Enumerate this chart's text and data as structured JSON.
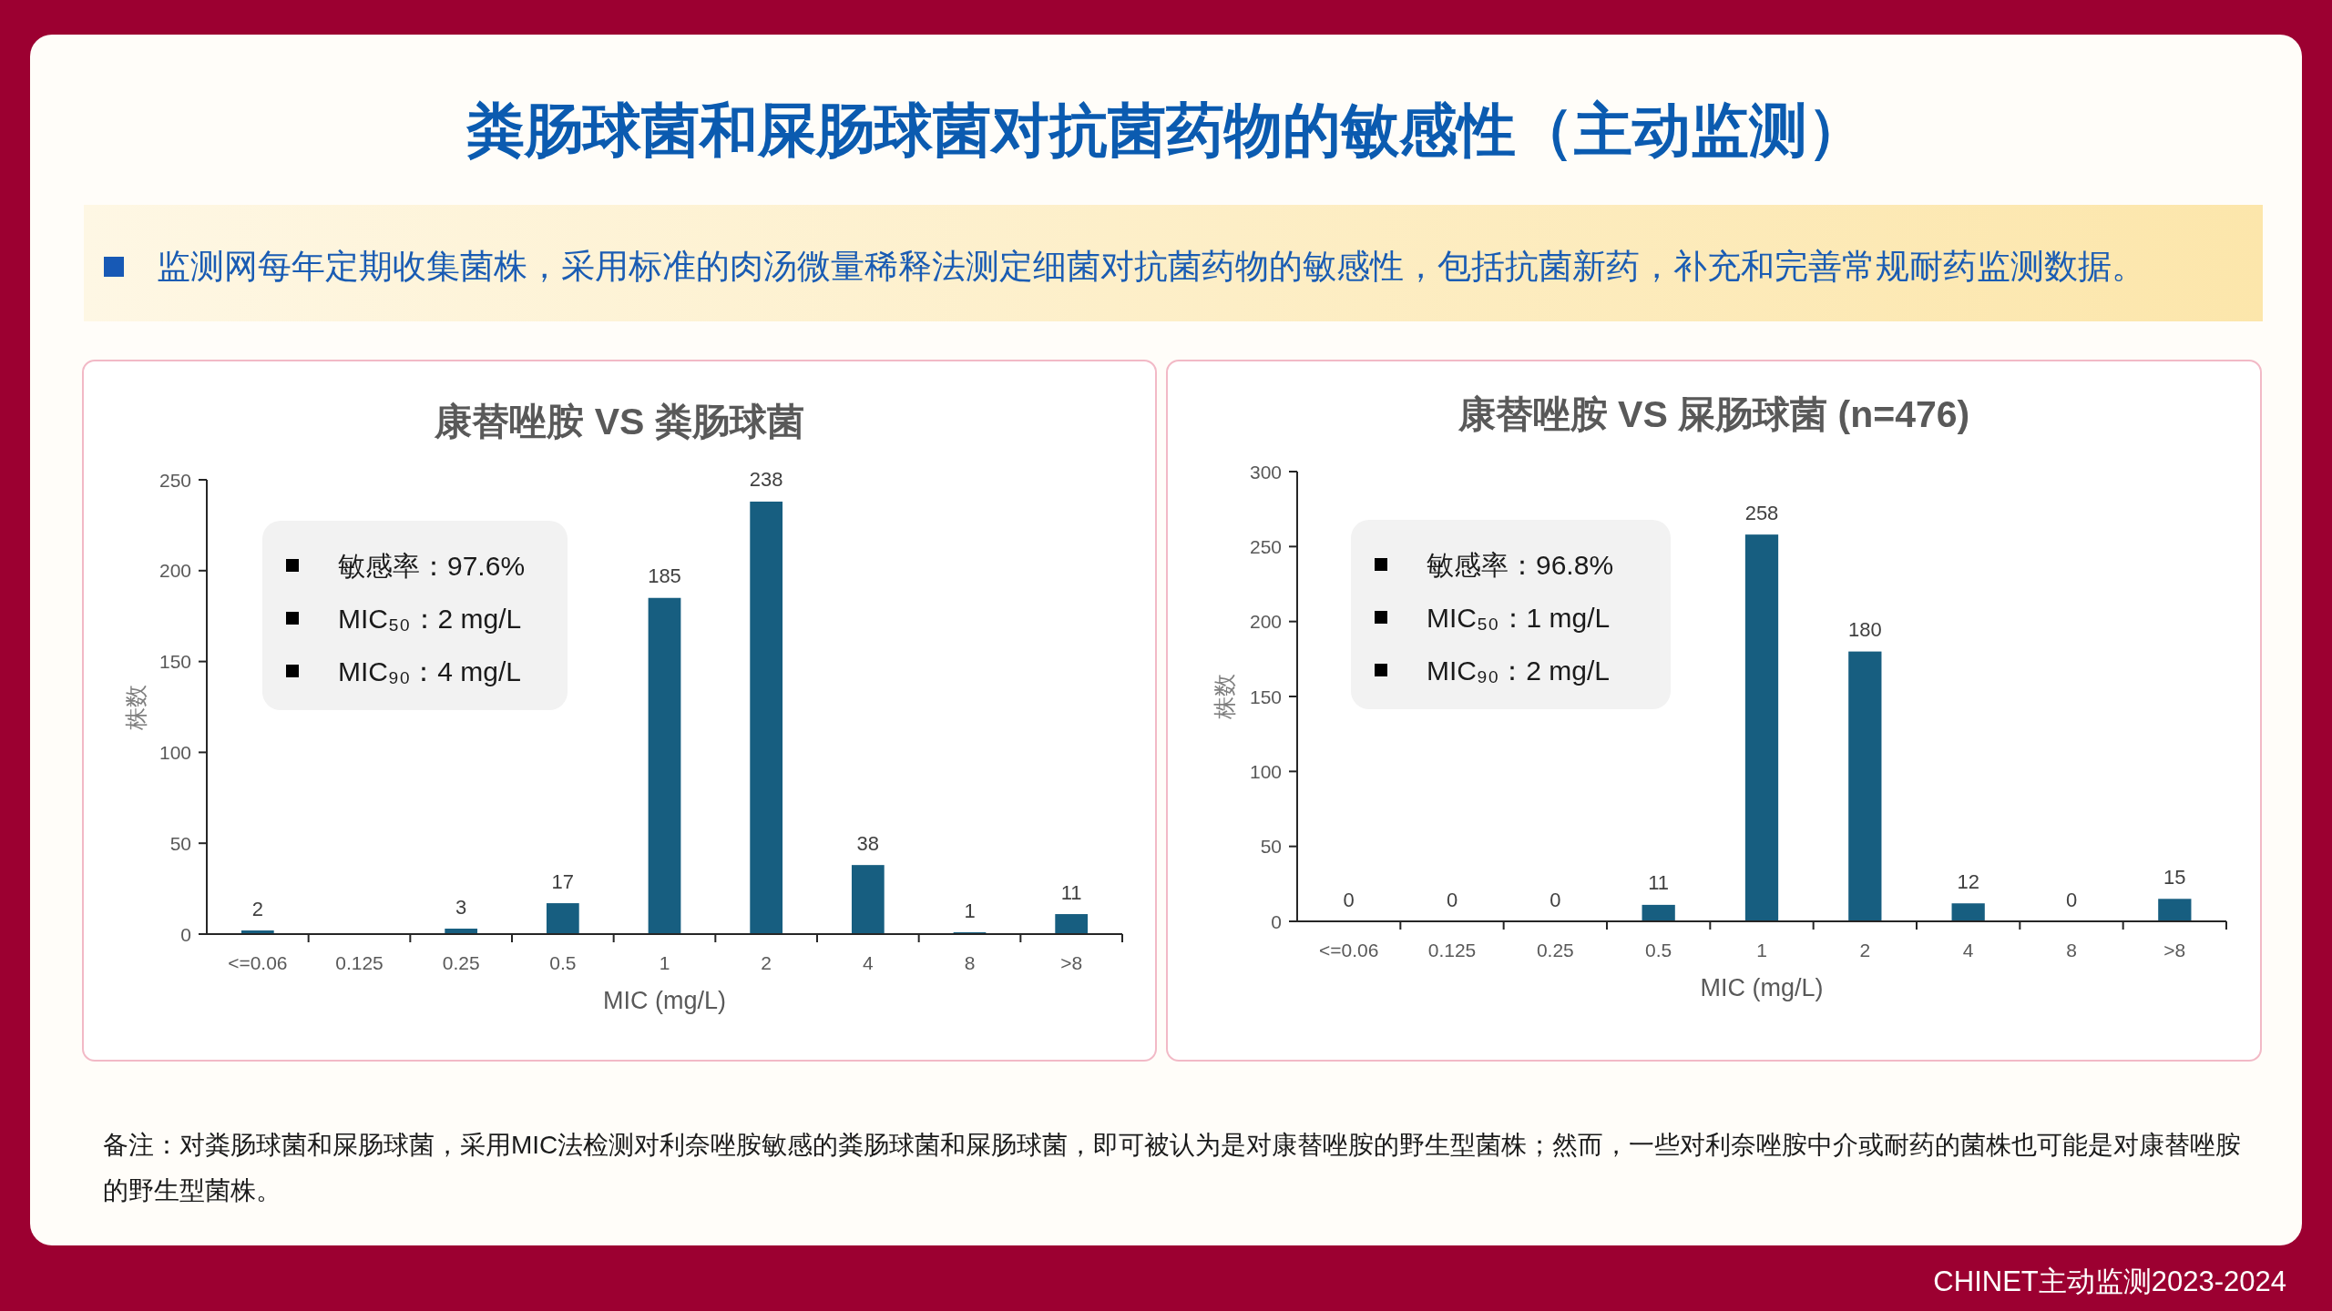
{
  "chart_data": [
    {
      "type": "other",
      "title": "粪肠球菌和屎肠球菌对抗菌药物的敏感性（主动监测）",
      "subtitle": "监测网每年定期收集菌株，采用标准的肉汤微量稀释法测定细菌对抗菌药物的敏感性，包括抗菌新药，补充和完善常规耐药监测数据。"
    },
    {
      "type": "bar",
      "title": "康替唑胺 VS 粪肠球菌",
      "xlabel": "MIC (mg/L)",
      "ylabel": "株数",
      "categories": [
        "<=0.06",
        "0.125",
        "0.25",
        "0.5",
        "1",
        "2",
        "4",
        "8",
        ">8"
      ],
      "values": [
        2,
        0,
        3,
        17,
        185,
        238,
        38,
        1,
        11
      ],
      "value_labels": [
        "2",
        null,
        "3",
        "17",
        "185",
        "238",
        "38",
        "1",
        "11"
      ],
      "color": "#175e80",
      "ylim": [
        0,
        250
      ],
      "yticks": [
        0,
        50,
        100,
        150,
        200,
        250
      ],
      "annotations": [
        "敏感率：97.6%",
        "MIC₅₀：2 mg/L",
        "MIC₉₀：4 mg/L"
      ]
    },
    {
      "type": "bar",
      "title": "康替唑胺 VS 屎肠球菌 (n=476)",
      "xlabel": "MIC (mg/L)",
      "ylabel": "株数",
      "categories": [
        "<=0.06",
        "0.125",
        "0.25",
        "0.5",
        "1",
        "2",
        "4",
        "8",
        ">8"
      ],
      "values": [
        0,
        0,
        0,
        11,
        258,
        180,
        12,
        0,
        15
      ],
      "data_labels": true,
      "color": "#175e80",
      "ylim": [
        0,
        300
      ],
      "yticks": [
        0,
        50,
        100,
        150,
        200,
        250,
        300
      ],
      "annotations": [
        "敏感率：96.8%",
        "MIC₅₀：1 mg/L",
        "MIC₉₀：2 mg/L"
      ]
    },
    {
      "type": "other",
      "annotations": [
        "备注：对粪肠球菌和屎肠球菌，采用MIC法检测对利奈唑胺敏感的粪肠球菌和屎肠球菌，即可被认为是对康替唑胺的野生型菌株；然而，一些对利奈唑胺中介或耐药的菌株也可能是对康替唑胺的野生型菌株。",
        "CHINET主动监测2023-2024"
      ]
    }
  ]
}
